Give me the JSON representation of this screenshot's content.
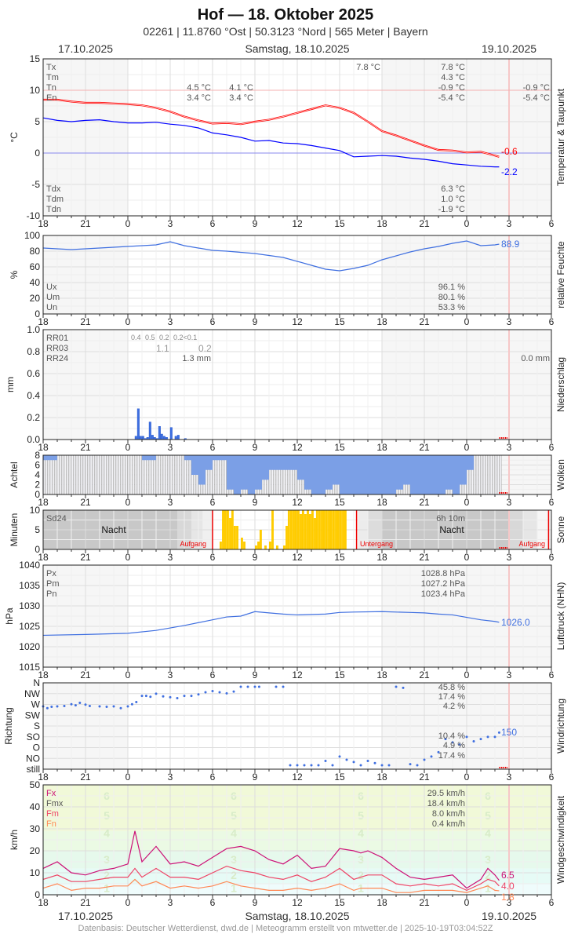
{
  "header": {
    "title": "Hof  —  18. Oktober 2025",
    "subtitle": "02261  |  11.8760 °Ost  |  50.3123 °Nord  |  565 Meter  |  Bayern",
    "date_left": "17.10.2025",
    "date_center": "Samstag, 18.10.2025",
    "date_right": "19.10.2025"
  },
  "footer": "Datenbasis: Deutscher Wetterdienst, dwd.de | Meteogramm erstellt von mtwetter.de | 2025-10-19T03:04:52Z",
  "x_ticks": [
    "18",
    "21",
    "0",
    "3",
    "6",
    "9",
    "12",
    "15",
    "18",
    "21",
    "0",
    "3",
    "6"
  ],
  "colors": {
    "temp": "#ff0000",
    "dew": "#0000ff",
    "humidity": "#3f6fe0",
    "rain": "#3f6fe0",
    "cloud": "#7b9fe6",
    "sun": "#ffcc00",
    "pressure": "#3f6fe0",
    "winddir": "#3f6fe0",
    "fx": "#cc1177",
    "fm": "#ee4466",
    "fn": "#ff8855"
  },
  "chart_data": [
    {
      "type": "line",
      "title": "Temperatur & Taupunkt",
      "ylabel": "°C",
      "ylim": [
        -10,
        15
      ],
      "yticks": [
        "15",
        "10",
        "5",
        "0",
        "-5",
        "-10"
      ],
      "x_hours_since_17_18h": [
        0,
        1,
        2,
        3,
        4,
        5,
        6,
        7,
        8,
        9,
        10,
        11,
        12,
        13,
        14,
        15,
        16,
        17,
        18,
        19,
        20,
        21,
        22,
        23,
        24,
        25,
        26,
        27,
        28,
        29,
        30,
        31,
        32,
        32.3
      ],
      "series": [
        {
          "name": "Temperatur",
          "values": [
            8.5,
            8.5,
            8.2,
            8.0,
            8.0,
            7.9,
            7.8,
            7.6,
            7.2,
            6.6,
            5.8,
            5.2,
            4.7,
            4.8,
            4.6,
            5.0,
            5.3,
            5.8,
            6.4,
            7.0,
            7.6,
            7.2,
            6.4,
            5.0,
            3.5,
            2.8,
            2.0,
            1.2,
            0.5,
            0.4,
            0.1,
            0.2,
            -0.4,
            -0.6
          ]
        },
        {
          "name": "Taupunkt",
          "values": [
            5.6,
            5.2,
            5.0,
            5.2,
            5.3,
            5.0,
            4.8,
            4.8,
            4.9,
            4.6,
            4.4,
            4.0,
            3.2,
            2.9,
            2.5,
            1.9,
            2.0,
            1.6,
            1.5,
            1.2,
            0.8,
            0.4,
            -0.6,
            -0.5,
            -0.4,
            -0.5,
            -0.8,
            -1.0,
            -1.3,
            -1.7,
            -1.9,
            -2.1,
            -2.2,
            -2.2
          ]
        }
      ],
      "end_labels": [
        "-0.6",
        "-2.2"
      ],
      "stats_left": {
        "labels": [
          "Tx",
          "Tm",
          "Tn",
          "En"
        ],
        "day1_tn": "4.5 °C",
        "day1_en": "3.4 °C",
        "day2_tn": "4.1 °C",
        "day2_en": "3.4 °C",
        "tx_peak": "7.8 °C",
        "tx": "7.8 °C",
        "tm": "4.3 °C",
        "tn": "-0.9 °C",
        "en": "-5.4 °C",
        "tn3": "-0.9 °C",
        "en3": "-5.4 °C"
      },
      "stats_dew": {
        "labels": [
          "Tdx",
          "Tdm",
          "Tdn"
        ],
        "values": [
          "6.3 °C",
          "1.0 °C",
          "-1.9 °C"
        ]
      }
    },
    {
      "type": "line",
      "title": "relative Feuchte",
      "ylabel": "%",
      "ylim": [
        0,
        100
      ],
      "yticks": [
        "100",
        "80",
        "60",
        "40",
        "20",
        "0"
      ],
      "x_hours_since_17_18h": [
        0,
        2,
        4,
        6,
        8,
        9,
        10,
        12,
        13,
        15,
        17,
        19,
        20,
        21,
        22,
        23,
        24,
        26,
        27,
        28,
        29,
        30,
        31,
        32,
        32.3
      ],
      "values": [
        84,
        82,
        84,
        86,
        88,
        92,
        87,
        81,
        80,
        77,
        72,
        62,
        57,
        55,
        58,
        62,
        69,
        79,
        83,
        86,
        90,
        93,
        87,
        88,
        88.9
      ],
      "end_label": "88.9",
      "stats": {
        "labels": [
          "Ux",
          "Um",
          "Un"
        ],
        "values": [
          "96.1 %",
          "80.1 %",
          "53.3 %"
        ]
      }
    },
    {
      "type": "bar",
      "title": "Niederschlag",
      "ylabel": "mm",
      "ylim": [
        0,
        1.0
      ],
      "yticks": [
        "1.0",
        "0.8",
        "0.6",
        "0.4",
        "0.2",
        "0.0"
      ],
      "x_hours_since_17_18h": [
        6.5,
        6.67,
        6.83,
        7.0,
        7.17,
        7.33,
        7.5,
        7.67,
        7.83,
        8.0,
        8.17,
        8.33,
        8.5,
        8.67,
        9.0,
        9.33,
        9.5,
        10.0
      ],
      "values": [
        0.03,
        0.28,
        0.03,
        0.03,
        0.01,
        0.02,
        0.16,
        0.04,
        0.02,
        0.01,
        0.12,
        0.05,
        0.03,
        0.02,
        0.11,
        0.03,
        0.04,
        0.01
      ],
      "stats": {
        "labels": [
          "RR01",
          "RR03",
          "RR24"
        ],
        "rr01": [
          "0.4",
          "0.5",
          "0.2",
          "0.2<0.1"
        ],
        "rr03": [
          "1.1",
          "0.2"
        ],
        "rr24": "1.3 mm",
        "rr24_next": "0.0 mm"
      }
    },
    {
      "type": "bar",
      "title": "Wolken",
      "ylabel": "Achtel",
      "ylim": [
        0,
        8
      ],
      "yticks": [
        "8",
        "6",
        "4",
        "2",
        "0"
      ],
      "note": "cloud cover in octas per hour (blue)",
      "x_hours_since_17_18h": [
        0,
        1,
        2,
        3,
        4,
        5,
        6,
        7,
        8,
        9,
        10,
        10.5,
        11,
        11.5,
        12,
        12.5,
        13,
        13.5,
        14,
        14.5,
        15,
        15.5,
        16,
        16.5,
        17,
        17.5,
        18,
        18.5,
        19,
        19.5,
        20,
        20.5,
        21,
        21.5,
        22,
        22.5,
        23,
        23.5,
        24,
        24.5,
        25,
        25.5,
        26,
        26.5,
        27,
        27.5,
        28,
        28.5,
        29,
        29.5,
        30,
        30.5,
        31,
        31.5,
        32,
        32.5
      ],
      "values": [
        1,
        0,
        0,
        0,
        0,
        0,
        0,
        1,
        0,
        0,
        1,
        4,
        6,
        3,
        1,
        1,
        7,
        8,
        7,
        8,
        7,
        5,
        3,
        3,
        3,
        3,
        5,
        7,
        8,
        8,
        7,
        6,
        8,
        8,
        8,
        8,
        8,
        8,
        8,
        8,
        7,
        6,
        8,
        8,
        8,
        8,
        8,
        7,
        8,
        6,
        3,
        0,
        0,
        0,
        0,
        0
      ]
    },
    {
      "type": "bar",
      "title": "Sonne",
      "ylabel": "Minuten",
      "ylim": [
        0,
        10
      ],
      "yticks": [
        "10",
        "5",
        "0"
      ],
      "x_hours_since_17_18h": [
        12.5,
        12.67,
        12.83,
        13.0,
        13.17,
        13.33,
        13.5,
        13.67,
        14.0,
        14.17,
        15.0,
        15.17,
        15.33,
        15.67,
        16.0,
        16.17,
        16.5,
        17.0,
        17.17,
        17.33,
        17.5,
        17.67,
        17.83,
        18.0,
        18.17,
        18.33,
        18.5,
        18.67,
        18.83,
        19.0,
        19.17,
        19.33,
        19.5,
        19.67,
        19.83,
        20.0,
        20.17,
        20.33,
        20.5,
        20.67,
        20.83,
        21.0,
        21.17,
        21.33
      ],
      "values": [
        2,
        10,
        10,
        10,
        8,
        10,
        6,
        6,
        3,
        2,
        1,
        2,
        5,
        1,
        2,
        10,
        1,
        1,
        6,
        10,
        10,
        10,
        10,
        10,
        9,
        10,
        9,
        10,
        9,
        10,
        8,
        10,
        10,
        10,
        10,
        10,
        10,
        10,
        10,
        10,
        10,
        10,
        10,
        10
      ],
      "stats": {
        "label": "Sd24",
        "value": "6h 10m",
        "night": "Nacht",
        "sunrise": "Aufgang",
        "sunset": "Untergang"
      }
    },
    {
      "type": "line",
      "title": "Luftdruck (NHN)",
      "ylabel": "hPa",
      "ylim": [
        1015,
        1040
      ],
      "yticks": [
        "1040",
        "1035",
        "1030",
        "1025",
        "1020",
        "1015"
      ],
      "x_hours_since_17_18h": [
        0,
        3,
        6,
        8,
        10,
        12,
        13,
        14,
        15,
        16,
        17,
        18,
        20,
        21,
        22,
        24,
        26,
        27,
        28,
        29,
        30,
        31,
        32,
        32.3
      ],
      "values": [
        1022.8,
        1023.0,
        1023.3,
        1024.0,
        1025.2,
        1026.6,
        1027.3,
        1027.5,
        1028.6,
        1028.3,
        1028.0,
        1027.8,
        1028.0,
        1028.4,
        1028.5,
        1028.6,
        1028.4,
        1028.3,
        1028.0,
        1027.8,
        1027.2,
        1026.6,
        1026.2,
        1026.0
      ],
      "end_label": "1026.0",
      "stats": {
        "labels": [
          "Px",
          "Pm",
          "Pn"
        ],
        "values": [
          "1028.8 hPa",
          "1027.2 hPa",
          "1023.4 hPa"
        ]
      }
    },
    {
      "type": "scatter",
      "title": "Windrichtung",
      "ylabel": "Richtung",
      "yticks": [
        "N",
        "NW",
        "W",
        "SW",
        "S",
        "SO",
        "O",
        "NO",
        "still"
      ],
      "note": "direction in degrees, 0 = still",
      "x_hours_since_17_18h": [
        0,
        0.3,
        0.6,
        1,
        1.5,
        2,
        2.3,
        2.6,
        3,
        3.3,
        4,
        4.5,
        5,
        5.5,
        6,
        6.3,
        6.6,
        7,
        7.3,
        7.6,
        8,
        8.5,
        9,
        9.5,
        10,
        10.5,
        11,
        11.5,
        12,
        12.5,
        13,
        13.5,
        14,
        14.5,
        15,
        15.3,
        16.5,
        17,
        17.5,
        18,
        18.5,
        19,
        19.5,
        20,
        20.5,
        21,
        21.5,
        22,
        22.5,
        23,
        23.5,
        24,
        24.5,
        25,
        25.5,
        26,
        26.5,
        27,
        27.5,
        28,
        28.5,
        29,
        29.5,
        30,
        30.5,
        31,
        31.5,
        32,
        32.3
      ],
      "values": [
        270,
        262,
        268,
        270,
        272,
        280,
        275,
        286,
        278,
        272,
        270,
        268,
        270,
        262,
        270,
        280,
        290,
        318,
        318,
        314,
        328,
        316,
        312,
        308,
        318,
        318,
        325,
        335,
        340,
        335,
        330,
        338,
        360,
        360,
        360,
        360,
        360,
        360,
        0,
        0,
        0,
        0,
        0,
        20,
        0,
        40,
        25,
        15,
        0,
        20,
        10,
        0,
        0,
        360,
        355,
        5,
        0,
        25,
        40,
        60,
        120,
        105,
        95,
        130,
        110,
        120,
        130,
        130,
        150
      ],
      "end_label": "150",
      "stats": [
        "45.8 %",
        "17.4 %",
        "4.2 %",
        "10.4 %",
        "4.9 %",
        "17.4 %"
      ]
    },
    {
      "type": "line",
      "title": "Windgeschwindigkeit",
      "ylabel": "km/h",
      "ylim": [
        0,
        50
      ],
      "yticks": [
        "50",
        "40",
        "30",
        "20",
        "10",
        "0"
      ],
      "beaufort_labels": [
        "6",
        "5",
        "4",
        "3",
        "2",
        "1"
      ],
      "x_hours_since_17_18h": [
        0,
        1,
        2,
        3,
        4,
        5,
        6,
        6.5,
        7,
        8,
        9,
        10,
        11,
        12,
        13,
        14,
        15,
        16,
        17,
        18,
        19,
        20,
        21,
        22,
        22.5,
        23,
        24,
        25,
        26,
        27,
        28,
        29,
        30,
        31,
        31.5,
        32,
        32.3
      ],
      "series": [
        {
          "name": "Fx",
          "values": [
            12,
            15,
            10,
            9,
            11,
            12,
            14,
            29,
            15,
            22,
            14,
            15,
            13,
            17,
            21,
            22,
            20,
            16,
            14,
            18,
            12,
            13,
            21,
            20,
            19,
            20,
            17,
            12,
            8,
            7,
            8,
            9,
            3,
            7,
            12,
            9,
            6.5
          ]
        },
        {
          "name": "Fm",
          "values": [
            7,
            9,
            6,
            6,
            7,
            8,
            8,
            12,
            8,
            12,
            8,
            8,
            7,
            10,
            13,
            11,
            10,
            8,
            7,
            9,
            6,
            8,
            12,
            7,
            8,
            9,
            9,
            5,
            4,
            5,
            4,
            5,
            2,
            5,
            7,
            6,
            4
          ]
        },
        {
          "name": "Fn",
          "values": [
            3,
            5,
            2,
            3,
            3,
            4,
            4,
            7,
            4,
            6,
            3,
            4,
            3,
            4,
            6,
            4,
            3,
            2,
            2,
            3,
            2,
            3,
            5,
            2,
            3,
            3,
            3,
            1,
            1,
            2,
            2,
            2,
            1,
            3,
            4,
            2,
            1.8
          ]
        }
      ],
      "end_labels": [
        "6.5",
        "4.0",
        "1.8"
      ],
      "stats": {
        "labels": [
          "Fx",
          "Fmx",
          "Fm",
          "Fn"
        ],
        "values": [
          "29.5 km/h",
          "18.4 km/h",
          "8.0 km/h",
          "0.4 km/h"
        ]
      }
    }
  ]
}
